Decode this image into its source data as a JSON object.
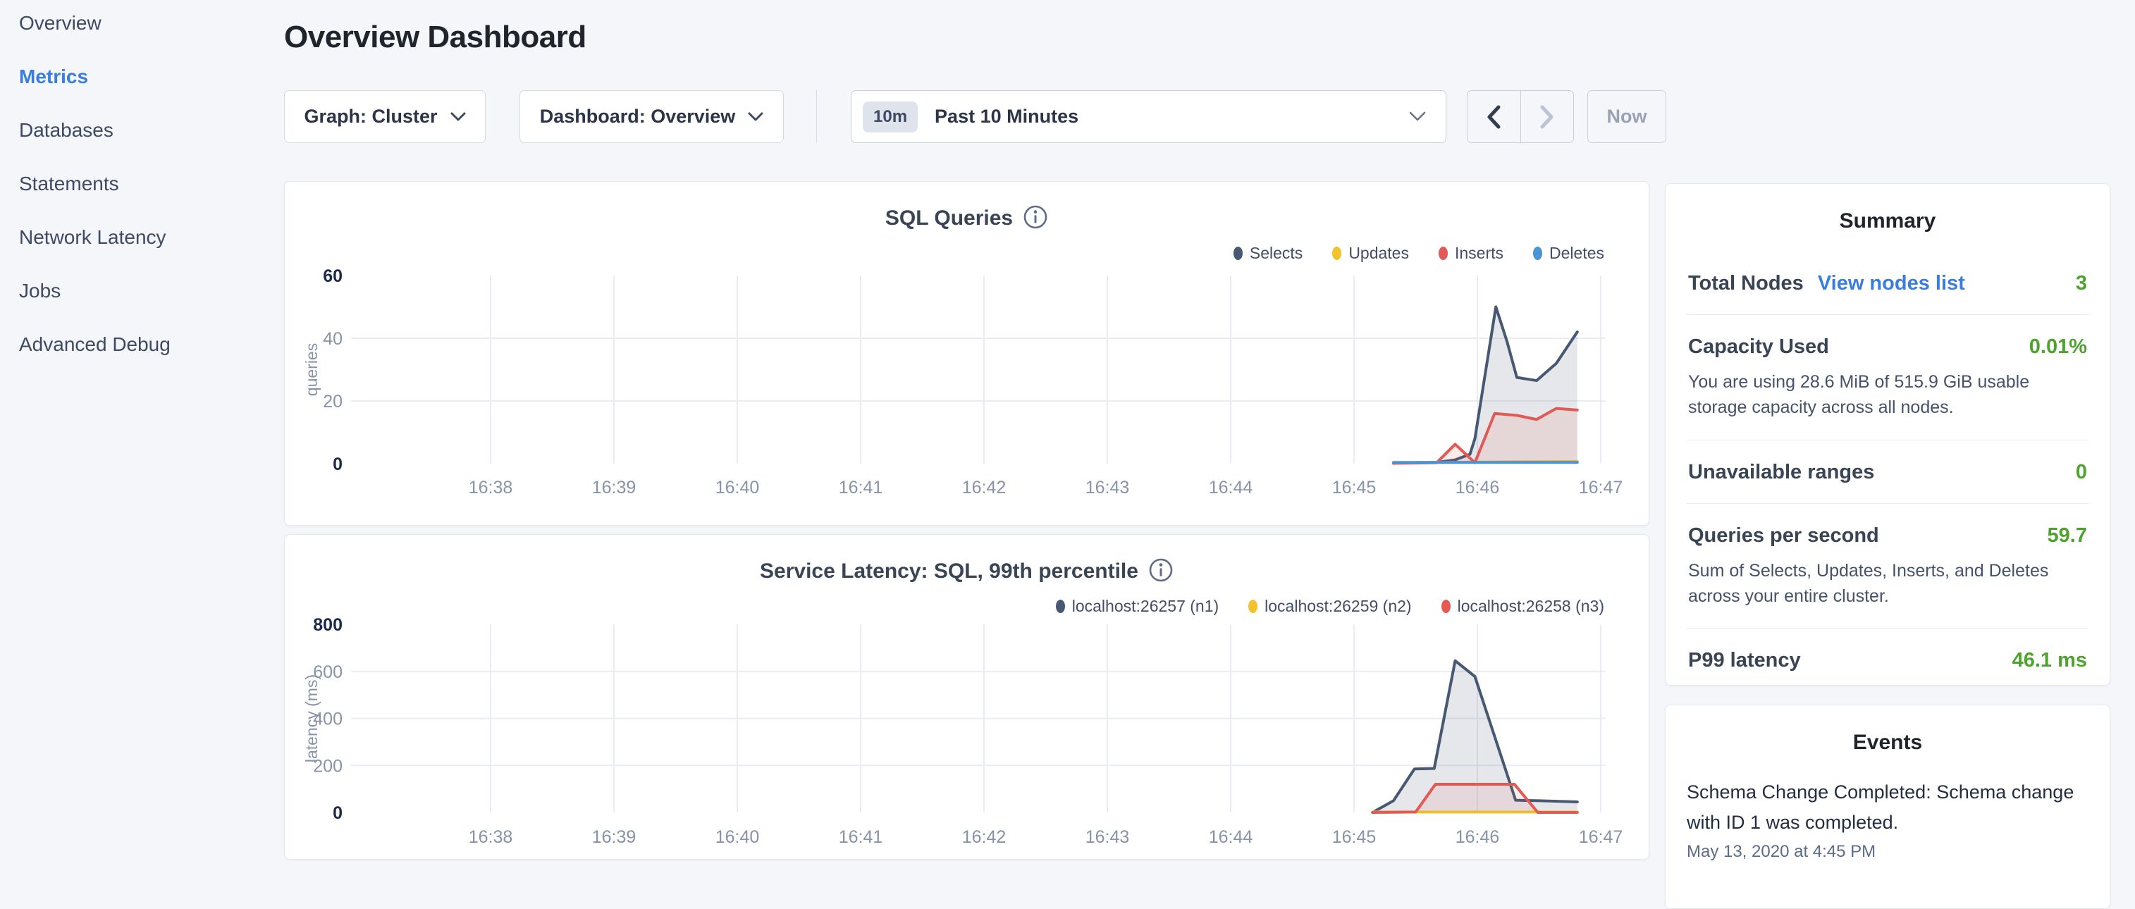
{
  "sidebar": {
    "items": [
      {
        "label": "Overview",
        "active": false
      },
      {
        "label": "Metrics",
        "active": true
      },
      {
        "label": "Databases",
        "active": false
      },
      {
        "label": "Statements",
        "active": false
      },
      {
        "label": "Network Latency",
        "active": false
      },
      {
        "label": "Jobs",
        "active": false
      },
      {
        "label": "Advanced Debug",
        "active": false
      }
    ]
  },
  "header": {
    "title": "Overview Dashboard"
  },
  "toolbar": {
    "graph_dropdown": "Graph: Cluster",
    "dashboard_dropdown": "Dashboard: Overview",
    "time_badge": "10m",
    "time_label": "Past 10 Minutes",
    "now_label": "Now"
  },
  "summary": {
    "title": "Summary",
    "rows": [
      {
        "label": "Total Nodes",
        "link": "View nodes list",
        "value": "3",
        "desc": ""
      },
      {
        "label": "Capacity Used",
        "link": "",
        "value": "0.01%",
        "desc": "You are using 28.6 MiB of 515.9 GiB usable storage capacity across all nodes."
      },
      {
        "label": "Unavailable ranges",
        "link": "",
        "value": "0",
        "desc": ""
      },
      {
        "label": "Queries per second",
        "link": "",
        "value": "59.7",
        "desc": "Sum of Selects, Updates, Inserts, and Deletes across your entire cluster."
      },
      {
        "label": "P99 latency",
        "link": "",
        "value": "46.1 ms",
        "desc": ""
      }
    ]
  },
  "events": {
    "title": "Events",
    "items": [
      {
        "text": "Schema Change Completed: Schema change with ID 1 was completed.",
        "time": "May 13, 2020 at 4:45 PM"
      }
    ]
  },
  "colors": {
    "background": "#f4f6fa",
    "accent_blue": "#3a7de0",
    "green_value": "#4ea32e",
    "series_navy": "#475872",
    "series_yellow": "#f3c32e",
    "series_red": "#e35954",
    "series_blue": "#4a93d6",
    "gridline": "#e9edf3",
    "tick_strong": "#1b2a4e",
    "tick_muted": "#8793a8"
  },
  "chart_data": [
    {
      "type": "area",
      "title": "SQL Queries",
      "ylabel": "queries",
      "y_max": 60,
      "ylim": [
        0,
        60
      ],
      "grid": true,
      "legend_position": "top-right",
      "y_ticks": [
        {
          "v": 60,
          "label": "60",
          "strong": true,
          "line": false
        },
        {
          "v": 40,
          "label": "40",
          "strong": false,
          "line": true
        },
        {
          "v": 20,
          "label": "20",
          "strong": false,
          "line": true
        },
        {
          "v": 0,
          "label": "0",
          "strong": true,
          "line": false
        }
      ],
      "x_ticks": [
        {
          "m": 38,
          "label": "16:38"
        },
        {
          "m": 39,
          "label": "16:39"
        },
        {
          "m": 40,
          "label": "16:40"
        },
        {
          "m": 41,
          "label": "16:41"
        },
        {
          "m": 42,
          "label": "16:42"
        },
        {
          "m": 43,
          "label": "16:43"
        },
        {
          "m": 44,
          "label": "16:44"
        },
        {
          "m": 45,
          "label": "16:45"
        },
        {
          "m": 46,
          "label": "16:46"
        },
        {
          "m": 47,
          "label": "16:47"
        }
      ],
      "series": [
        {
          "name": "Selects",
          "color": "#475872",
          "fill": "rgba(71,88,114,0.14)",
          "points": [
            [
              45.32,
              0.3
            ],
            [
              45.67,
              0.4
            ],
            [
              45.82,
              1.2
            ],
            [
              45.94,
              3
            ],
            [
              45.98,
              8
            ],
            [
              46.15,
              50
            ],
            [
              46.24,
              39
            ],
            [
              46.32,
              27.5
            ],
            [
              46.48,
              26.5
            ],
            [
              46.64,
              32
            ],
            [
              46.81,
              42
            ]
          ]
        },
        {
          "name": "Updates",
          "color": "#f3c32e",
          "fill": null,
          "points": [
            [
              45.32,
              0.2
            ],
            [
              46.2,
              0.6
            ],
            [
              46.81,
              0.7
            ]
          ]
        },
        {
          "name": "Inserts",
          "color": "#e35954",
          "fill": "rgba(227,89,84,0.12)",
          "points": [
            [
              45.32,
              0.1
            ],
            [
              45.67,
              0.3
            ],
            [
              45.82,
              6.2
            ],
            [
              45.98,
              0.3
            ],
            [
              46.14,
              16
            ],
            [
              46.32,
              15.4
            ],
            [
              46.48,
              14.1
            ],
            [
              46.64,
              17.6
            ],
            [
              46.81,
              17.1
            ]
          ]
        },
        {
          "name": "Deletes",
          "color": "#4a93d6",
          "fill": null,
          "points": [
            [
              45.32,
              0.4
            ],
            [
              46.81,
              0.4
            ]
          ]
        }
      ]
    },
    {
      "type": "area",
      "title": "Service Latency: SQL, 99th percentile",
      "ylabel": "latency (ms)",
      "y_max": 800,
      "ylim": [
        0,
        800
      ],
      "grid": true,
      "legend_position": "top-right",
      "y_ticks": [
        {
          "v": 800,
          "label": "800",
          "strong": true,
          "line": false
        },
        {
          "v": 600,
          "label": "600",
          "strong": false,
          "line": true
        },
        {
          "v": 400,
          "label": "400",
          "strong": false,
          "line": true
        },
        {
          "v": 200,
          "label": "200",
          "strong": false,
          "line": true
        },
        {
          "v": 0,
          "label": "0",
          "strong": true,
          "line": false
        }
      ],
      "x_ticks": [
        {
          "m": 38,
          "label": "16:38"
        },
        {
          "m": 39,
          "label": "16:39"
        },
        {
          "m": 40,
          "label": "16:40"
        },
        {
          "m": 41,
          "label": "16:41"
        },
        {
          "m": 42,
          "label": "16:42"
        },
        {
          "m": 43,
          "label": "16:43"
        },
        {
          "m": 44,
          "label": "16:44"
        },
        {
          "m": 45,
          "label": "16:45"
        },
        {
          "m": 46,
          "label": "16:46"
        },
        {
          "m": 47,
          "label": "16:47"
        }
      ],
      "series": [
        {
          "name": "localhost:26257 (n1)",
          "color": "#475872",
          "fill": "rgba(71,88,114,0.14)",
          "points": [
            [
              45.15,
              0
            ],
            [
              45.32,
              50
            ],
            [
              45.49,
              185
            ],
            [
              45.65,
              187
            ],
            [
              45.82,
              645
            ],
            [
              45.98,
              578
            ],
            [
              46.12,
              355
            ],
            [
              46.31,
              52
            ],
            [
              46.5,
              50
            ],
            [
              46.81,
              45
            ]
          ]
        },
        {
          "name": "localhost:26259 (n2)",
          "color": "#f3c32e",
          "fill": null,
          "points": [
            [
              45.15,
              2
            ],
            [
              46.81,
              2
            ]
          ]
        },
        {
          "name": "localhost:26258 (n3)",
          "color": "#e35954",
          "fill": "rgba(227,89,84,0.10)",
          "points": [
            [
              45.15,
              0
            ],
            [
              45.5,
              2
            ],
            [
              45.66,
              120
            ],
            [
              46.3,
              120
            ],
            [
              46.49,
              0
            ],
            [
              46.81,
              0
            ]
          ]
        }
      ]
    }
  ]
}
